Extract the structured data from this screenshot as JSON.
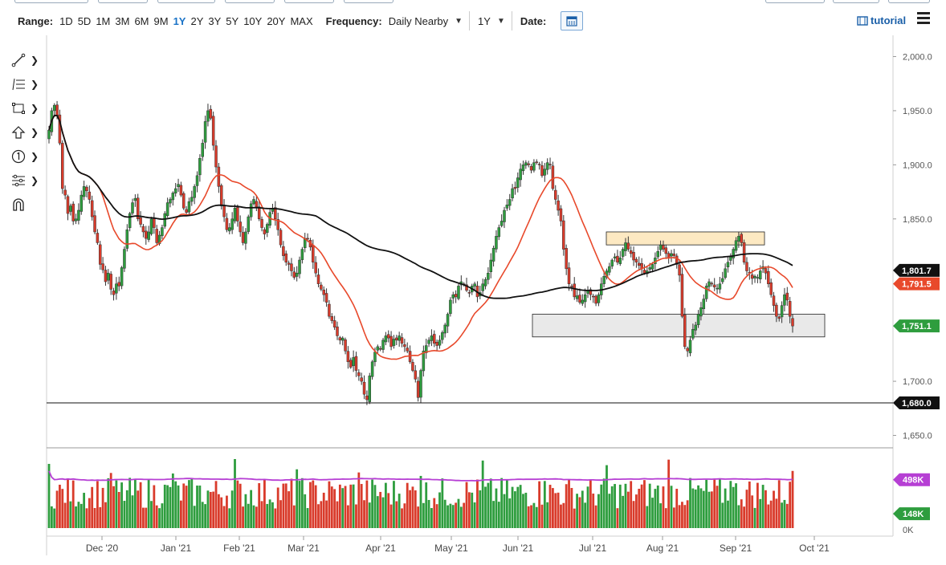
{
  "toolbar": {
    "range_label": "Range:",
    "ranges": [
      "1D",
      "5D",
      "1M",
      "3M",
      "6M",
      "9M",
      "1Y",
      "2Y",
      "3Y",
      "5Y",
      "10Y",
      "20Y",
      "MAX"
    ],
    "active_range": "1Y",
    "frequency_label": "Frequency:",
    "frequency_value": "Daily Nearby",
    "period_value": "1Y",
    "date_label": "Date:",
    "tutorial_label": "tutorial"
  },
  "tools": [
    "line-tool-icon",
    "fibonacci-tool-icon",
    "rectangle-tool-icon",
    "arrow-tool-icon",
    "number-marker-icon",
    "measure-tool-icon",
    "magnet-icon"
  ],
  "colors": {
    "up": "#2e9d3e",
    "down": "#d93b2b",
    "ma_red": "#e8492b",
    "ma_black": "#111111",
    "volume_avg": "#b63fd4",
    "resistance_box": "#fde9c2",
    "support_box": "#e9e9e9"
  },
  "chart_data": [
    {
      "type": "candlestick",
      "x_ticks": [
        "Dec '20",
        "Jan '21",
        "Feb '21",
        "Mar '21",
        "Apr '21",
        "May '21",
        "Jun '21",
        "Jul '21",
        "Aug '21",
        "Sep '21",
        "Oct '21"
      ],
      "y_ticks": [
        "2,000.0",
        "1,950.0",
        "1,900.0",
        "1,850.0",
        "1,700.0",
        "1,650.0"
      ],
      "ylim": [
        1640,
        2010
      ],
      "price_tags": [
        {
          "label": "1,801.7",
          "value": 1801.7,
          "color": "#111111"
        },
        {
          "label": "1,791.5",
          "value": 1791.5,
          "color": "#e8492b"
        },
        {
          "label": "1,751.1",
          "value": 1751.1,
          "color": "#2e9d3e"
        },
        {
          "label": "1,680.0",
          "value": 1680.0,
          "color": "#111111"
        }
      ],
      "horizontal_line": 1680.0,
      "zones": [
        {
          "kind": "resistance",
          "from": 1826,
          "to": 1838
        },
        {
          "kind": "support",
          "from": 1741,
          "to": 1762
        }
      ],
      "closes": [
        1932,
        1950,
        1955,
        1945,
        1920,
        1878,
        1872,
        1855,
        1862,
        1848,
        1850,
        1858,
        1872,
        1880,
        1876,
        1868,
        1852,
        1838,
        1828,
        1808,
        1803,
        1792,
        1800,
        1785,
        1780,
        1790,
        1788,
        1805,
        1822,
        1840,
        1855,
        1865,
        1869,
        1850,
        1845,
        1838,
        1832,
        1838,
        1850,
        1842,
        1828,
        1835,
        1842,
        1855,
        1865,
        1868,
        1874,
        1878,
        1882,
        1872,
        1860,
        1856,
        1866,
        1870,
        1880,
        1890,
        1906,
        1920,
        1940,
        1950,
        1943,
        1918,
        1898,
        1880,
        1862,
        1852,
        1840,
        1842,
        1850,
        1860,
        1848,
        1838,
        1828,
        1838,
        1852,
        1864,
        1868,
        1861,
        1850,
        1842,
        1836,
        1845,
        1856,
        1860,
        1850,
        1840,
        1826,
        1816,
        1810,
        1808,
        1802,
        1796,
        1800,
        1812,
        1822,
        1832,
        1832,
        1824,
        1810,
        1800,
        1790,
        1785,
        1780,
        1773,
        1760,
        1756,
        1750,
        1742,
        1738,
        1740,
        1728,
        1718,
        1713,
        1722,
        1710,
        1705,
        1700,
        1688,
        1683,
        1705,
        1718,
        1727,
        1732,
        1730,
        1738,
        1742,
        1740,
        1732,
        1739,
        1738,
        1742,
        1735,
        1732,
        1728,
        1718,
        1710,
        1702,
        1685,
        1710,
        1728,
        1733,
        1738,
        1742,
        1735,
        1733,
        1738,
        1745,
        1752,
        1762,
        1775,
        1780,
        1778,
        1788,
        1792,
        1790,
        1784,
        1782,
        1788,
        1790,
        1778,
        1782,
        1790,
        1794,
        1800,
        1812,
        1823,
        1834,
        1842,
        1848,
        1858,
        1863,
        1868,
        1878,
        1878,
        1888,
        1896,
        1900,
        1902,
        1900,
        1895,
        1902,
        1902,
        1900,
        1890,
        1896,
        1902,
        1900,
        1878,
        1868,
        1858,
        1848,
        1822,
        1804,
        1790,
        1788,
        1778,
        1779,
        1773,
        1775,
        1780,
        1784,
        1780,
        1778,
        1772,
        1780,
        1790,
        1797,
        1802,
        1806,
        1812,
        1815,
        1810,
        1814,
        1822,
        1828,
        1822,
        1818,
        1812,
        1810,
        1807,
        1804,
        1800,
        1802,
        1805,
        1808,
        1814,
        1820,
        1826,
        1822,
        1818,
        1814,
        1818,
        1816,
        1808,
        1798,
        1760,
        1732,
        1728,
        1738,
        1748,
        1752,
        1762,
        1768,
        1776,
        1788,
        1792,
        1790,
        1787,
        1786,
        1790,
        1795,
        1804,
        1810,
        1815,
        1822,
        1830,
        1834,
        1828,
        1810,
        1802,
        1800,
        1795,
        1797,
        1796,
        1802,
        1806,
        1800,
        1790,
        1780,
        1770,
        1760,
        1758,
        1770,
        1780,
        1775,
        1760,
        1751.1
      ],
      "moving_averages": [
        "red",
        "black"
      ]
    },
    {
      "type": "bar",
      "name": "volume",
      "y_tags": [
        {
          "label": "498K",
          "value": 498,
          "color": "#b63fd4"
        },
        {
          "label": "148K",
          "value": 148,
          "color": "#2e9d3e"
        },
        {
          "label": "0K",
          "value": 0,
          "color": "#555555"
        }
      ],
      "ylim": [
        0,
        760
      ]
    }
  ]
}
